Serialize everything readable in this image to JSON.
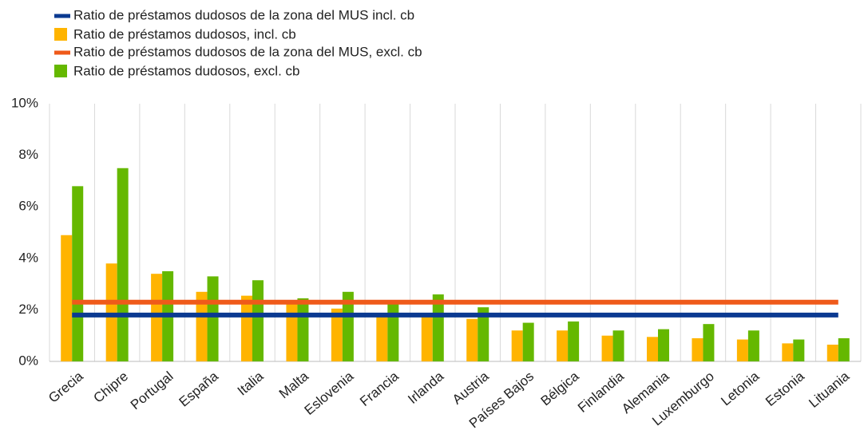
{
  "chart_data": {
    "type": "bar",
    "categories": [
      "Grecia",
      "Chipre",
      "Portugal",
      "España",
      "Italia",
      "Malta",
      "Eslovenia",
      "Francia",
      "Irlanda",
      "Austria",
      "Países Bajos",
      "Bélgica",
      "Finlandia",
      "Alemania",
      "Luxemburgo",
      "Letonia",
      "Estonia",
      "Lituania"
    ],
    "series": [
      {
        "name": "Ratio de préstamos dudosos de la zona del MUS incl. cb",
        "type": "line",
        "color": "#0b3a91",
        "values": [
          1.8,
          1.8,
          1.8,
          1.8,
          1.8,
          1.8,
          1.8,
          1.8,
          1.8,
          1.8,
          1.8,
          1.8,
          1.8,
          1.8,
          1.8,
          1.8,
          1.8,
          1.8
        ]
      },
      {
        "name": "Ratio de préstamos dudosos, incl. cb",
        "type": "bar",
        "color": "#ffb400",
        "values": [
          4.9,
          3.8,
          3.4,
          2.7,
          2.55,
          2.3,
          2.05,
          1.8,
          1.75,
          1.65,
          1.2,
          1.2,
          1.0,
          0.95,
          0.9,
          0.85,
          0.7,
          0.65
        ]
      },
      {
        "name": "Ratio de préstamos dudosos de la zona del MUS, excl. cb",
        "type": "line",
        "color": "#ef5a1a",
        "values": [
          2.3,
          2.3,
          2.3,
          2.3,
          2.3,
          2.3,
          2.3,
          2.3,
          2.3,
          2.3,
          2.3,
          2.3,
          2.3,
          2.3,
          2.3,
          2.3,
          2.3,
          2.3
        ]
      },
      {
        "name": "Ratio de préstamos dudosos, excl. cb",
        "type": "bar",
        "color": "#65b800",
        "values": [
          6.8,
          7.5,
          3.5,
          3.3,
          3.15,
          2.45,
          2.7,
          2.25,
          2.6,
          2.1,
          1.5,
          1.55,
          1.2,
          1.25,
          1.45,
          1.2,
          0.85,
          0.9
        ]
      }
    ],
    "ylim": [
      0,
      10
    ],
    "yticks": [
      {
        "value": 0,
        "label": "0%"
      },
      {
        "value": 2,
        "label": "2%"
      },
      {
        "value": 4,
        "label": "4%"
      },
      {
        "value": 6,
        "label": "6%"
      },
      {
        "value": 8,
        "label": "8%"
      },
      {
        "value": 10,
        "label": "10%"
      }
    ]
  }
}
